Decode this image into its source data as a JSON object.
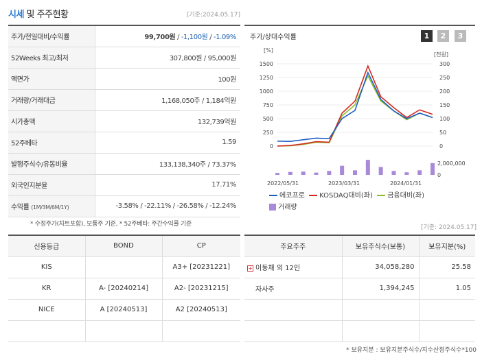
{
  "header": {
    "title_main": "시세",
    "title_rest": " 및 주주현황",
    "base_date": "[기준:2024.05.17]"
  },
  "info": {
    "rows": [
      {
        "label": "주가/전일대비/수익률"
      },
      {
        "label": "52Weeks 최고/최저",
        "value": "307,800원 / 95,000원"
      },
      {
        "label": "액면가",
        "value": "100원"
      },
      {
        "label": "거래량/거래대금",
        "value": "1,168,050주 / 1,184억원"
      },
      {
        "label": "시가총액",
        "value": "132,739억원"
      },
      {
        "label": "52주베타",
        "value": "1.59"
      },
      {
        "label": "발행주식수/유동비율",
        "value": "133,138,340주 / 73.37%"
      },
      {
        "label": "외국인지분율",
        "value": "17.71%"
      },
      {
        "label": "수익률",
        "label_small": "(1M/3M/6M/1Y)"
      }
    ],
    "price": "99,700원",
    "change": "-1,100원",
    "change_pct": "-1.09%",
    "returns": [
      "-3.58%",
      "-22.11%",
      "-26.58%",
      "-12.24%"
    ],
    "note": "* 수정주가(차트포함), 보통주 기준, * 52주베타: 주간수익률 기준"
  },
  "chart": {
    "title": "주가/상대수익률",
    "buttons": [
      "1",
      "2",
      "3"
    ],
    "left_unit": "[%]",
    "right_unit": "[천원]",
    "left_ticks": [
      "1500",
      "1250",
      "1000",
      "750",
      "500",
      "250",
      "0"
    ],
    "right_ticks": [
      "300",
      "250",
      "200",
      "150",
      "100",
      "50",
      "0"
    ],
    "vol_tick": "2,000,000",
    "vol_zero": "0",
    "x_ticks": [
      "2022/05/31",
      "2023/03/31",
      "2024/01/31"
    ],
    "legend": [
      "에코프로",
      "KOSDAQ대비(좌)",
      "금융대비(좌)",
      "거래량"
    ],
    "colors": {
      "stock": "#1f5fc4",
      "kosdaq": "#d42a20",
      "finance": "#8bbf2a",
      "volume": "#a98ad8"
    }
  },
  "chart_data": {
    "type": "line",
    "title": "주가/상대수익률",
    "x": [
      "2022/05",
      "2022/07",
      "2022/09",
      "2022/11",
      "2023/01",
      "2023/03",
      "2023/05",
      "2023/07",
      "2023/09",
      "2023/11",
      "2024/01",
      "2024/03",
      "2024/05"
    ],
    "series": [
      {
        "name": "에코프로",
        "axis": "right",
        "values": [
          18,
          17,
          23,
          29,
          27,
          100,
          130,
          268,
          170,
          128,
          100,
          120,
          104
        ]
      },
      {
        "name": "KOSDAQ대비(좌)",
        "axis": "left",
        "values": [
          0,
          10,
          40,
          80,
          70,
          600,
          820,
          1460,
          900,
          700,
          520,
          660,
          580
        ]
      },
      {
        "name": "금융대비(좌)",
        "axis": "left",
        "values": [
          0,
          5,
          30,
          70,
          60,
          550,
          750,
          1280,
          820,
          640,
          480,
          600,
          520
        ]
      },
      {
        "name": "거래량",
        "axis": "volume",
        "values": [
          300000,
          450000,
          500000,
          350000,
          600000,
          1400000,
          700000,
          2300000,
          1200000,
          600000,
          400000,
          700000,
          1800000
        ]
      }
    ],
    "ylim_left": [
      0,
      1500
    ],
    "ylim_right": [
      0,
      300
    ],
    "ylim_volume": [
      0,
      2000000
    ]
  },
  "credit": {
    "headers": [
      "신용등급",
      "BOND",
      "CP"
    ],
    "rows": [
      [
        "KIS",
        "",
        "A3+ [20231221]"
      ],
      [
        "KR",
        "A- [20240214]",
        "A2- [20231215]"
      ],
      [
        "NICE",
        "A [20240513]",
        "A2 [20240513]"
      ],
      [
        "",
        "",
        ""
      ]
    ]
  },
  "holders": {
    "base_date": "[기준: 2024.05.17]",
    "headers": [
      "주요주주",
      "보유주식수(보통)",
      "보유지분(%)"
    ],
    "rows": [
      [
        "이동채 외 12인",
        "34,058,280",
        "25.58"
      ],
      [
        "자사주",
        "1,394,245",
        "1.05"
      ],
      [
        "",
        "",
        ""
      ],
      [
        "",
        "",
        ""
      ]
    ],
    "note": "* 보유지분 : 보유지분주식수/지수산정주식수*100"
  }
}
